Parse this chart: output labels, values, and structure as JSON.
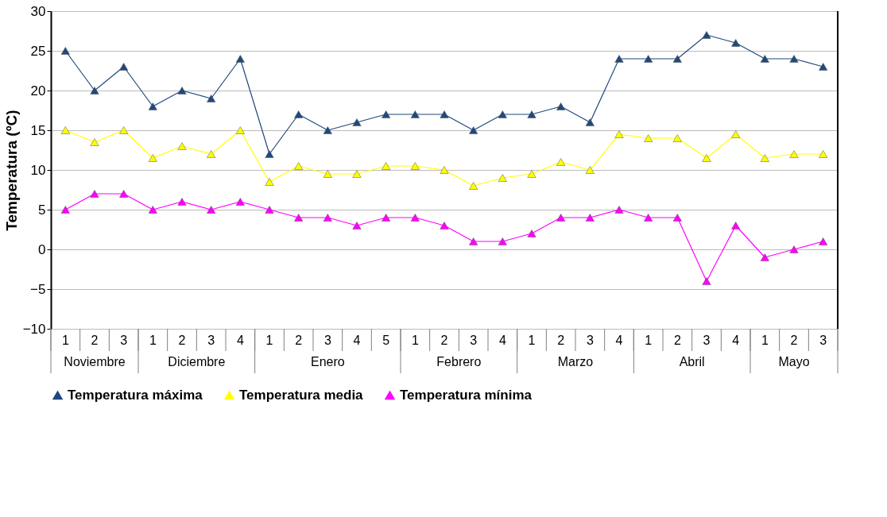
{
  "chart_data": {
    "type": "line",
    "ylabel": "Temperatura   (ºC)",
    "categories": [
      "1",
      "2",
      "3",
      "1",
      "2",
      "3",
      "4",
      "1",
      "2",
      "3",
      "4",
      "5",
      "1",
      "2",
      "3",
      "4",
      "1",
      "2",
      "3",
      "4",
      "1",
      "2",
      "3",
      "4",
      "1",
      "2",
      "3"
    ],
    "annotations": [
      "Noviembre",
      "Diciembre",
      "Enero",
      "Febrero",
      "Marzo",
      "Abril",
      "Mayo"
    ],
    "series": [
      {
        "name": "Temperatura máxima",
        "color": "#1f497d",
        "values": [
          25,
          20,
          23,
          18,
          20,
          19,
          24,
          12,
          17,
          15,
          16,
          17,
          17,
          17,
          15,
          17,
          17,
          18,
          16,
          24,
          24,
          24,
          27,
          26,
          24,
          24,
          23
        ]
      },
      {
        "name": "Temperatura media",
        "color": "#ffff00",
        "values": [
          15,
          13.5,
          15,
          11.5,
          13,
          12,
          15,
          8.5,
          10.5,
          9.5,
          9.5,
          10.5,
          10.5,
          10,
          8,
          9,
          9.5,
          11,
          10,
          14.5,
          14,
          14,
          11.5,
          14.5,
          11.5,
          12,
          12
        ]
      },
      {
        "name": "Temperatura mínima",
        "color": "#ff00ff",
        "values": [
          5,
          7,
          7,
          5,
          6,
          5,
          6,
          5,
          4,
          4,
          3,
          4,
          4,
          3,
          1,
          1,
          2,
          4,
          4,
          5,
          4,
          4,
          -4,
          3,
          -1,
          0,
          1
        ]
      }
    ],
    "ylim": [
      -10,
      30
    ],
    "yticks": [
      -10,
      -5,
      0,
      5,
      10,
      15,
      20,
      25,
      30
    ],
    "grid": "y",
    "legend": "bottom",
    "marker": "triangle",
    "line_style": "solid"
  }
}
